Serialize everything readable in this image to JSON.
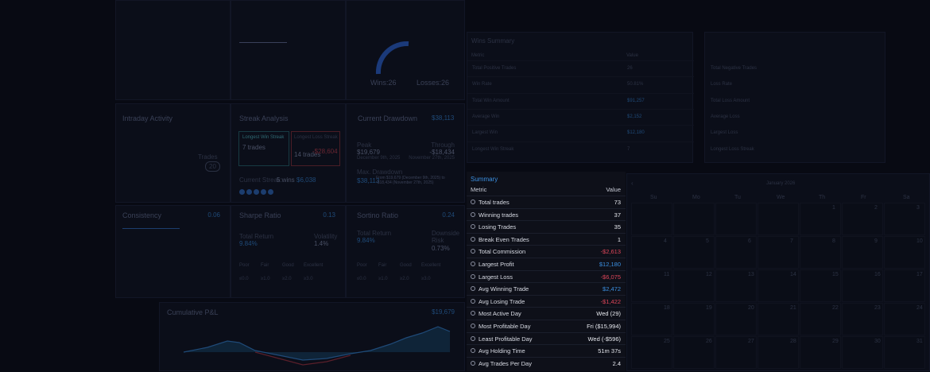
{
  "overview": {
    "wins": "Wins:26",
    "losses": "Losses:26"
  },
  "intraday": {
    "title": "Intraday Activity",
    "trades_label": "Trades",
    "trades": "20"
  },
  "streak": {
    "title": "Streak Analysis",
    "win_label": "Longest Win Streak",
    "win_value": "7 trades",
    "loss_label": "Longest Loss Streak",
    "loss_trades": "14 trades",
    "loss_value": "-$28,604",
    "current_label": "Current Streak:",
    "current_value": "5 wins",
    "current_amount": "$6,038"
  },
  "drawdown": {
    "title": "Current Drawdown",
    "value": "$38,113",
    "peak_label": "Peak",
    "peak_value": "$19,679",
    "peak_date": "December 9th, 2025",
    "through_label": "Through",
    "through_value": "-$18,434",
    "through_date": "November 27th, 2025",
    "max_label": "Max. Drawdown",
    "max_value": "$38,113",
    "max_note": "From $19,679 (December 9th, 2025) to -$18,434 (November 27th, 2025)"
  },
  "consistency": {
    "title": "Consistency",
    "value": "0.06"
  },
  "sharpe": {
    "title": "Sharpe Ratio",
    "value": "0.13",
    "return_label": "Total Return",
    "return_value": "9.84%",
    "vol_label": "Volatility",
    "vol_value": "1.4%",
    "scale": [
      [
        "Poor",
        "≤0.0"
      ],
      [
        "Fair",
        "≥1.0"
      ],
      [
        "Good",
        "≥2.0"
      ],
      [
        "Excellent",
        "≥3.0"
      ]
    ]
  },
  "sortino": {
    "title": "Sortino Ratio",
    "value": "0.24",
    "return_label": "Total Return",
    "return_value": "9.84%",
    "risk_label": "Downside Risk",
    "risk_value": "0.73%",
    "scale": [
      [
        "Poor",
        "≤0.0"
      ],
      [
        "Fair",
        "≥1.0"
      ],
      [
        "Good",
        "≥2.0"
      ],
      [
        "Excellent",
        "≥3.0"
      ]
    ]
  },
  "cumulative": {
    "title": "Cumulative P&L",
    "value": "$19,679"
  },
  "wins_summary": {
    "title": "Wins Summary",
    "header": [
      "Metric",
      "Value"
    ],
    "rows": [
      [
        "Total Positive Trades",
        "26"
      ],
      [
        "Win Rate",
        "50.81%"
      ],
      [
        "Total Win Amount",
        "$91,257"
      ],
      [
        "Average Win",
        "$2,152"
      ],
      [
        "Largest Win",
        "$12,180"
      ],
      [
        "Longest Win Streak",
        "7"
      ]
    ]
  },
  "losses_summary": {
    "rows": [
      "Total Negative Trades",
      "Loss Rate",
      "Total Loss Amount",
      "Average Loss",
      "Largest Loss",
      "Longest Loss Streak"
    ]
  },
  "summary": {
    "title": "Summary",
    "header": [
      "Metric",
      "Value"
    ],
    "rows": [
      {
        "metric": "Total trades",
        "value": "73",
        "color": "#e6e8ee"
      },
      {
        "metric": "Winning trades",
        "value": "37",
        "color": "#e6e8ee"
      },
      {
        "metric": "Losing Trades",
        "value": "35",
        "color": "#e6e8ee"
      },
      {
        "metric": "Break Even Trades",
        "value": "1",
        "color": "#e6e8ee"
      },
      {
        "metric": "Total Commission",
        "value": "-$2,613",
        "color": "#e0465a"
      },
      {
        "metric": "Largest Profit",
        "value": "$12,180",
        "color": "#3b8fe0"
      },
      {
        "metric": "Largest Loss",
        "value": "-$6,075",
        "color": "#e0465a"
      },
      {
        "metric": "Avg Winning Trade",
        "value": "$2,472",
        "color": "#3b8fe0"
      },
      {
        "metric": "Avg Losing Trade",
        "value": "-$1,422",
        "color": "#e0465a"
      },
      {
        "metric": "Most Active Day",
        "value": "Wed (29)",
        "color": "#e6e8ee"
      },
      {
        "metric": "Most Profitable Day",
        "value": "Fri ($15,994)",
        "color": "#e6e8ee"
      },
      {
        "metric": "Least Profitable Day",
        "value": "Wed (-$596)",
        "color": "#e6e8ee"
      },
      {
        "metric": "Avg Holding Time",
        "value": "51m 37s",
        "color": "#e6e8ee"
      },
      {
        "metric": "Avg Trades Per Day",
        "value": "2.4",
        "color": "#e6e8ee"
      }
    ]
  },
  "calendar": {
    "month": "January 2026",
    "weekdays": [
      "Su",
      "Mo",
      "Tu",
      "We",
      "Th",
      "Fr",
      "Sa"
    ],
    "weeks": [
      [
        null,
        null,
        null,
        null,
        "1",
        "2",
        "3"
      ],
      [
        "4",
        "5",
        "6",
        "7",
        "8",
        "9",
        "10"
      ],
      [
        "11",
        "12",
        "13",
        "14",
        "15",
        "16",
        "17"
      ],
      [
        "18",
        "19",
        "20",
        "21",
        "22",
        "23",
        "24"
      ],
      [
        "25",
        "26",
        "27",
        "28",
        "29",
        "30",
        "31"
      ]
    ]
  }
}
